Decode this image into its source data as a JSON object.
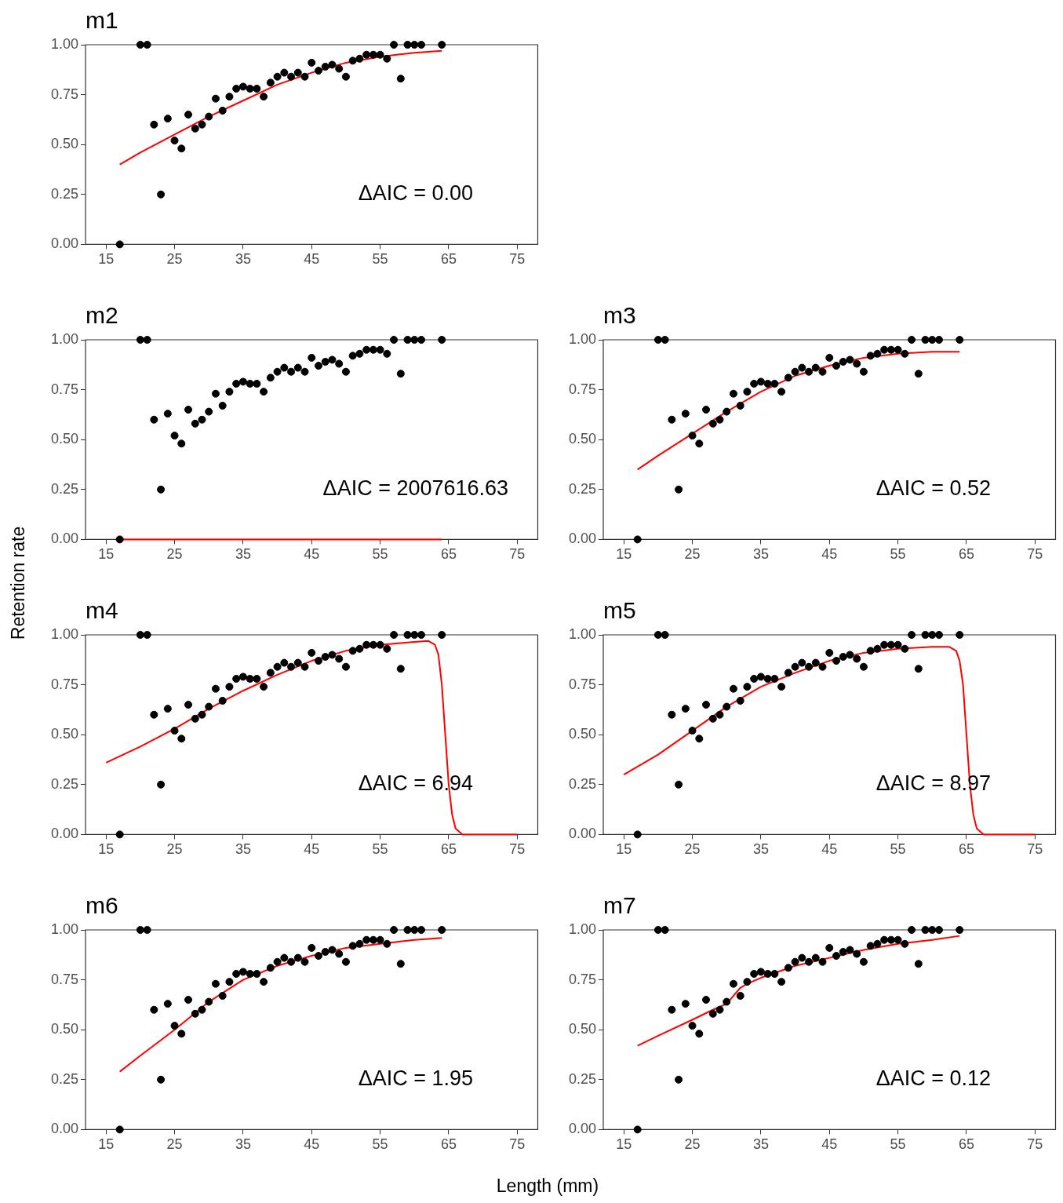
{
  "chart_data": [
    {
      "type": "scatter",
      "title": "m1",
      "xlabel": null,
      "xlim": [
        12,
        78
      ],
      "xticks": [
        15,
        25,
        35,
        45,
        55,
        65,
        75
      ],
      "ylim": [
        0,
        1
      ],
      "yticks": [
        {
          "value": 0,
          "label": "0.00"
        },
        {
          "value": 0.25,
          "label": "0.25"
        },
        {
          "value": 0.5,
          "label": "0.50"
        },
        {
          "value": 0.75,
          "label": "0.75"
        },
        {
          "value": 1,
          "label": "1.00"
        }
      ],
      "grid": false,
      "legend": false,
      "annotations": [
        "ΔAIC = 0.00"
      ],
      "series": [
        {
          "type": "scatter",
          "marker": "circle",
          "color": "#000000",
          "x": [
            17,
            20,
            21,
            22,
            23,
            24,
            25,
            26,
            27,
            28,
            29,
            30,
            31,
            32,
            33,
            34,
            35,
            36,
            37,
            38,
            39,
            40,
            41,
            42,
            43,
            44,
            45,
            46,
            47,
            48,
            49,
            50,
            51,
            52,
            53,
            54,
            55,
            56,
            57,
            58,
            59,
            60,
            61,
            64
          ],
          "values": [
            0,
            1,
            1,
            0.6,
            0.25,
            0.63,
            0.52,
            0.48,
            0.65,
            0.58,
            0.6,
            0.64,
            0.73,
            0.67,
            0.74,
            0.78,
            0.79,
            0.78,
            0.78,
            0.74,
            0.81,
            0.84,
            0.86,
            0.84,
            0.86,
            0.84,
            0.91,
            0.87,
            0.89,
            0.9,
            0.88,
            0.84,
            0.92,
            0.93,
            0.95,
            0.95,
            0.95,
            0.93,
            1,
            0.83,
            1,
            1,
            1,
            1
          ]
        },
        {
          "type": "line",
          "marker": "none",
          "color": "#ff0000",
          "x": [
            17,
            20,
            25,
            30,
            35,
            40,
            45,
            50,
            55,
            60,
            64
          ],
          "values": [
            0.4,
            0.46,
            0.55,
            0.64,
            0.72,
            0.8,
            0.86,
            0.91,
            0.94,
            0.96,
            0.97
          ]
        }
      ]
    },
    {
      "type": "scatter",
      "title": "m2",
      "xlim": [
        12,
        78
      ],
      "xticks": [
        15,
        25,
        35,
        45,
        55,
        65,
        75
      ],
      "ylim": [
        0,
        1
      ],
      "yticks": [
        {
          "value": 0,
          "label": "0.00"
        },
        {
          "value": 0.25,
          "label": "0.25"
        },
        {
          "value": 0.5,
          "label": "0.50"
        },
        {
          "value": 0.75,
          "label": "0.75"
        },
        {
          "value": 1,
          "label": "1.00"
        }
      ],
      "grid": false,
      "legend": false,
      "annotations": [
        "ΔAIC = 2007616.63"
      ],
      "series": [
        {
          "type": "scatter",
          "marker": "circle",
          "color": "#000000",
          "x": [
            17,
            20,
            21,
            22,
            23,
            24,
            25,
            26,
            27,
            28,
            29,
            30,
            31,
            32,
            33,
            34,
            35,
            36,
            37,
            38,
            39,
            40,
            41,
            42,
            43,
            44,
            45,
            46,
            47,
            48,
            49,
            50,
            51,
            52,
            53,
            54,
            55,
            56,
            57,
            58,
            59,
            60,
            61,
            64
          ],
          "values": [
            0,
            1,
            1,
            0.6,
            0.25,
            0.63,
            0.52,
            0.48,
            0.65,
            0.58,
            0.6,
            0.64,
            0.73,
            0.67,
            0.74,
            0.78,
            0.79,
            0.78,
            0.78,
            0.74,
            0.81,
            0.84,
            0.86,
            0.84,
            0.86,
            0.84,
            0.91,
            0.87,
            0.89,
            0.9,
            0.88,
            0.84,
            0.92,
            0.93,
            0.95,
            0.95,
            0.95,
            0.93,
            1,
            0.83,
            1,
            1,
            1,
            1
          ]
        },
        {
          "type": "line",
          "marker": "none",
          "color": "#ff0000",
          "x": [
            17,
            64
          ],
          "values": [
            0,
            0
          ]
        }
      ]
    },
    {
      "type": "scatter",
      "title": "m3",
      "xlim": [
        12,
        78
      ],
      "xticks": [
        15,
        25,
        35,
        45,
        55,
        65,
        75
      ],
      "ylim": [
        0,
        1
      ],
      "yticks": [
        {
          "value": 0,
          "label": "0.00"
        },
        {
          "value": 0.25,
          "label": "0.25"
        },
        {
          "value": 0.5,
          "label": "0.50"
        },
        {
          "value": 0.75,
          "label": "0.75"
        },
        {
          "value": 1,
          "label": "1.00"
        }
      ],
      "grid": false,
      "legend": false,
      "annotations": [
        "ΔAIC = 0.52"
      ],
      "series": [
        {
          "type": "scatter",
          "marker": "circle",
          "color": "#000000",
          "x": [
            17,
            20,
            21,
            22,
            23,
            24,
            25,
            26,
            27,
            28,
            29,
            30,
            31,
            32,
            33,
            34,
            35,
            36,
            37,
            38,
            39,
            40,
            41,
            42,
            43,
            44,
            45,
            46,
            47,
            48,
            49,
            50,
            51,
            52,
            53,
            54,
            55,
            56,
            57,
            58,
            59,
            60,
            61,
            64
          ],
          "values": [
            0,
            1,
            1,
            0.6,
            0.25,
            0.63,
            0.52,
            0.48,
            0.65,
            0.58,
            0.6,
            0.64,
            0.73,
            0.67,
            0.74,
            0.78,
            0.79,
            0.78,
            0.78,
            0.74,
            0.81,
            0.84,
            0.86,
            0.84,
            0.86,
            0.84,
            0.91,
            0.87,
            0.89,
            0.9,
            0.88,
            0.84,
            0.92,
            0.93,
            0.95,
            0.95,
            0.95,
            0.93,
            1,
            0.83,
            1,
            1,
            1,
            1
          ]
        },
        {
          "type": "line",
          "marker": "none",
          "color": "#ff0000",
          "x": [
            17,
            20,
            25,
            30,
            35,
            40,
            45,
            50,
            55,
            60,
            64
          ],
          "values": [
            0.35,
            0.42,
            0.53,
            0.64,
            0.74,
            0.82,
            0.87,
            0.91,
            0.93,
            0.94,
            0.94
          ]
        }
      ]
    },
    {
      "type": "scatter",
      "title": "m4",
      "ylabel": "Retention rate",
      "xlim": [
        12,
        78
      ],
      "xticks": [
        15,
        25,
        35,
        45,
        55,
        65,
        75
      ],
      "ylim": [
        0,
        1
      ],
      "yticks": [
        {
          "value": 0,
          "label": "0.00"
        },
        {
          "value": 0.25,
          "label": "0.25"
        },
        {
          "value": 0.5,
          "label": "0.50"
        },
        {
          "value": 0.75,
          "label": "0.75"
        },
        {
          "value": 1,
          "label": "1.00"
        }
      ],
      "grid": false,
      "legend": false,
      "annotations": [
        "ΔAIC = 6.94"
      ],
      "series": [
        {
          "type": "scatter",
          "marker": "circle",
          "color": "#000000",
          "x": [
            17,
            20,
            21,
            22,
            23,
            24,
            25,
            26,
            27,
            28,
            29,
            30,
            31,
            32,
            33,
            34,
            35,
            36,
            37,
            38,
            39,
            40,
            41,
            42,
            43,
            44,
            45,
            46,
            47,
            48,
            49,
            50,
            51,
            52,
            53,
            54,
            55,
            56,
            57,
            58,
            59,
            60,
            61,
            64
          ],
          "values": [
            0,
            1,
            1,
            0.6,
            0.25,
            0.63,
            0.52,
            0.48,
            0.65,
            0.58,
            0.6,
            0.64,
            0.73,
            0.67,
            0.74,
            0.78,
            0.79,
            0.78,
            0.78,
            0.74,
            0.81,
            0.84,
            0.86,
            0.84,
            0.86,
            0.84,
            0.91,
            0.87,
            0.89,
            0.9,
            0.88,
            0.84,
            0.92,
            0.93,
            0.95,
            0.95,
            0.95,
            0.93,
            1,
            0.83,
            1,
            1,
            1,
            1
          ]
        },
        {
          "type": "line",
          "marker": "none",
          "color": "#ff0000",
          "x": [
            15,
            20,
            25,
            30,
            35,
            40,
            45,
            50,
            55,
            60,
            62,
            63,
            63.5,
            64,
            64.5,
            65,
            65.5,
            66,
            67,
            68,
            75
          ],
          "values": [
            0.36,
            0.44,
            0.53,
            0.63,
            0.72,
            0.8,
            0.87,
            0.92,
            0.95,
            0.965,
            0.97,
            0.95,
            0.9,
            0.75,
            0.5,
            0.25,
            0.1,
            0.03,
            0,
            0,
            0
          ]
        }
      ]
    },
    {
      "type": "scatter",
      "title": "m5",
      "xlim": [
        12,
        78
      ],
      "xticks": [
        15,
        25,
        35,
        45,
        55,
        65,
        75
      ],
      "ylim": [
        0,
        1
      ],
      "yticks": [
        {
          "value": 0,
          "label": "0.00"
        },
        {
          "value": 0.25,
          "label": "0.25"
        },
        {
          "value": 0.5,
          "label": "0.50"
        },
        {
          "value": 0.75,
          "label": "0.75"
        },
        {
          "value": 1,
          "label": "1.00"
        }
      ],
      "grid": false,
      "legend": false,
      "annotations": [
        "ΔAIC = 8.97"
      ],
      "series": [
        {
          "type": "scatter",
          "marker": "circle",
          "color": "#000000",
          "x": [
            17,
            20,
            21,
            22,
            23,
            24,
            25,
            26,
            27,
            28,
            29,
            30,
            31,
            32,
            33,
            34,
            35,
            36,
            37,
            38,
            39,
            40,
            41,
            42,
            43,
            44,
            45,
            46,
            47,
            48,
            49,
            50,
            51,
            52,
            53,
            54,
            55,
            56,
            57,
            58,
            59,
            60,
            61,
            64
          ],
          "values": [
            0,
            1,
            1,
            0.6,
            0.25,
            0.63,
            0.52,
            0.48,
            0.65,
            0.58,
            0.6,
            0.64,
            0.73,
            0.67,
            0.74,
            0.78,
            0.79,
            0.78,
            0.78,
            0.74,
            0.81,
            0.84,
            0.86,
            0.84,
            0.86,
            0.84,
            0.91,
            0.87,
            0.89,
            0.9,
            0.88,
            0.84,
            0.92,
            0.93,
            0.95,
            0.95,
            0.95,
            0.93,
            1,
            0.83,
            1,
            1,
            1,
            1
          ]
        },
        {
          "type": "line",
          "marker": "none",
          "color": "#ff0000",
          "x": [
            15,
            20,
            25,
            30,
            35,
            40,
            45,
            50,
            55,
            60,
            62.5,
            63.5,
            64,
            64.5,
            65,
            65.5,
            66,
            66.5,
            67.5,
            68.5,
            75
          ],
          "values": [
            0.3,
            0.4,
            0.52,
            0.64,
            0.74,
            0.81,
            0.87,
            0.91,
            0.93,
            0.94,
            0.94,
            0.92,
            0.87,
            0.75,
            0.5,
            0.25,
            0.1,
            0.03,
            0,
            0,
            0
          ]
        }
      ]
    },
    {
      "type": "scatter",
      "title": "m6",
      "xlabel": "Length (mm)",
      "xlim": [
        12,
        78
      ],
      "xticks": [
        15,
        25,
        35,
        45,
        55,
        65,
        75
      ],
      "ylim": [
        0,
        1
      ],
      "yticks": [
        {
          "value": 0,
          "label": "0.00"
        },
        {
          "value": 0.25,
          "label": "0.25"
        },
        {
          "value": 0.5,
          "label": "0.50"
        },
        {
          "value": 0.75,
          "label": "0.75"
        },
        {
          "value": 1,
          "label": "1.00"
        }
      ],
      "grid": false,
      "legend": false,
      "annotations": [
        "ΔAIC = 1.95"
      ],
      "series": [
        {
          "type": "scatter",
          "marker": "circle",
          "color": "#000000",
          "x": [
            17,
            20,
            21,
            22,
            23,
            24,
            25,
            26,
            27,
            28,
            29,
            30,
            31,
            32,
            33,
            34,
            35,
            36,
            37,
            38,
            39,
            40,
            41,
            42,
            43,
            44,
            45,
            46,
            47,
            48,
            49,
            50,
            51,
            52,
            53,
            54,
            55,
            56,
            57,
            58,
            59,
            60,
            61,
            64
          ],
          "values": [
            0,
            1,
            1,
            0.6,
            0.25,
            0.63,
            0.52,
            0.48,
            0.65,
            0.58,
            0.6,
            0.64,
            0.73,
            0.67,
            0.74,
            0.78,
            0.79,
            0.78,
            0.78,
            0.74,
            0.81,
            0.84,
            0.86,
            0.84,
            0.86,
            0.84,
            0.91,
            0.87,
            0.89,
            0.9,
            0.88,
            0.84,
            0.92,
            0.93,
            0.95,
            0.95,
            0.95,
            0.93,
            1,
            0.83,
            1,
            1,
            1,
            1
          ]
        },
        {
          "type": "line",
          "marker": "none",
          "color": "#ff0000",
          "x": [
            17,
            20,
            25,
            30,
            35,
            40,
            45,
            50,
            55,
            60,
            64
          ],
          "values": [
            0.29,
            0.37,
            0.5,
            0.64,
            0.75,
            0.82,
            0.87,
            0.91,
            0.93,
            0.95,
            0.96
          ]
        }
      ]
    },
    {
      "type": "scatter",
      "title": "m7",
      "xlim": [
        12,
        78
      ],
      "xticks": [
        15,
        25,
        35,
        45,
        55,
        65,
        75
      ],
      "ylim": [
        0,
        1
      ],
      "yticks": [
        {
          "value": 0,
          "label": "0.00"
        },
        {
          "value": 0.25,
          "label": "0.25"
        },
        {
          "value": 0.5,
          "label": "0.50"
        },
        {
          "value": 0.75,
          "label": "0.75"
        },
        {
          "value": 1,
          "label": "1.00"
        }
      ],
      "grid": false,
      "legend": false,
      "annotations": [
        "ΔAIC = 0.12"
      ],
      "series": [
        {
          "type": "scatter",
          "marker": "circle",
          "color": "#000000",
          "x": [
            17,
            20,
            21,
            22,
            23,
            24,
            25,
            26,
            27,
            28,
            29,
            30,
            31,
            32,
            33,
            34,
            35,
            36,
            37,
            38,
            39,
            40,
            41,
            42,
            43,
            44,
            45,
            46,
            47,
            48,
            49,
            50,
            51,
            52,
            53,
            54,
            55,
            56,
            57,
            58,
            59,
            60,
            61,
            64
          ],
          "values": [
            0,
            1,
            1,
            0.6,
            0.25,
            0.63,
            0.52,
            0.48,
            0.65,
            0.58,
            0.6,
            0.64,
            0.73,
            0.67,
            0.74,
            0.78,
            0.79,
            0.78,
            0.78,
            0.74,
            0.81,
            0.84,
            0.86,
            0.84,
            0.86,
            0.84,
            0.91,
            0.87,
            0.89,
            0.9,
            0.88,
            0.84,
            0.92,
            0.93,
            0.95,
            0.95,
            0.95,
            0.93,
            1,
            0.83,
            1,
            1,
            1,
            1
          ]
        },
        {
          "type": "line",
          "marker": "none",
          "color": "#ff0000",
          "x": [
            17,
            20,
            25,
            28,
            30,
            31,
            32,
            33,
            35,
            40,
            45,
            50,
            55,
            60,
            64
          ],
          "values": [
            0.42,
            0.47,
            0.55,
            0.6,
            0.63,
            0.67,
            0.71,
            0.73,
            0.76,
            0.82,
            0.86,
            0.9,
            0.93,
            0.95,
            0.97
          ]
        }
      ]
    }
  ]
}
